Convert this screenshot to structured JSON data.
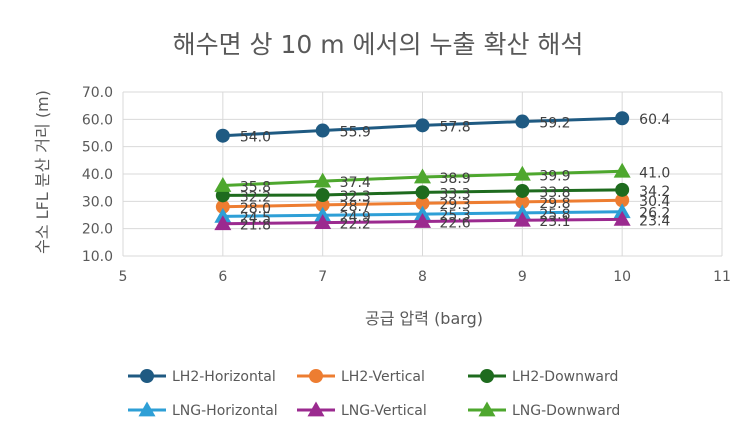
{
  "chart_data": {
    "type": "line",
    "title": "해수면 상 10 m 에서의 누출 확산 해석",
    "xlabel": "공급 압력 (barg)",
    "ylabel": "수소 LFL 분산 거리 (m)",
    "xlim": [
      5,
      11
    ],
    "ylim": [
      10,
      70
    ],
    "x_ticks": [
      "5",
      "6",
      "7",
      "8",
      "9",
      "10",
      "11"
    ],
    "y_ticks": [
      "10.0",
      "20.0",
      "30.0",
      "40.0",
      "50.0",
      "60.0",
      "70.0"
    ],
    "grid": true,
    "legend_position": "bottom",
    "x": [
      6,
      7,
      8,
      9,
      10
    ],
    "series": [
      {
        "name": "LH2-Horizontal",
        "marker": "circle",
        "color": "#1f5a82",
        "values": [
          54.0,
          55.9,
          57.8,
          59.2,
          60.4
        ],
        "labels": [
          "54.0",
          "55.9",
          "57.8",
          "59.2",
          "60.4"
        ]
      },
      {
        "name": "LH2-Vertical",
        "marker": "circle",
        "color": "#ed7d31",
        "values": [
          28.0,
          28.7,
          29.3,
          29.8,
          30.4
        ],
        "labels": [
          "28.0",
          "28.7",
          "29.3",
          "29.8",
          "30.4"
        ]
      },
      {
        "name": "LH2-Downward",
        "marker": "circle",
        "color": "#1e6b1e",
        "values": [
          32.2,
          32.3,
          33.3,
          33.8,
          34.2
        ],
        "labels": [
          "32.2",
          "32.3",
          "33.3",
          "33.8",
          "34.2"
        ]
      },
      {
        "name": "LNG-Horizontal",
        "marker": "triangle",
        "color": "#2e9fd6",
        "values": [
          24.5,
          24.9,
          25.3,
          25.8,
          26.2
        ],
        "labels": [
          "24.5",
          "24.9",
          "25.3",
          "25.8",
          "26.2"
        ]
      },
      {
        "name": "LNG-Vertical",
        "marker": "triangle",
        "color": "#9b2a8f",
        "values": [
          21.8,
          22.2,
          22.6,
          23.1,
          23.4
        ],
        "labels": [
          "21.8",
          "22.2",
          "22.6",
          "23.1",
          "23.4"
        ]
      },
      {
        "name": "LNG-Downward",
        "marker": "triangle",
        "color": "#4ea72e",
        "values": [
          35.8,
          37.4,
          38.9,
          39.9,
          41.0
        ],
        "labels": [
          "35.8",
          "37.4",
          "38.9",
          "39.9",
          "41.0"
        ]
      }
    ]
  }
}
